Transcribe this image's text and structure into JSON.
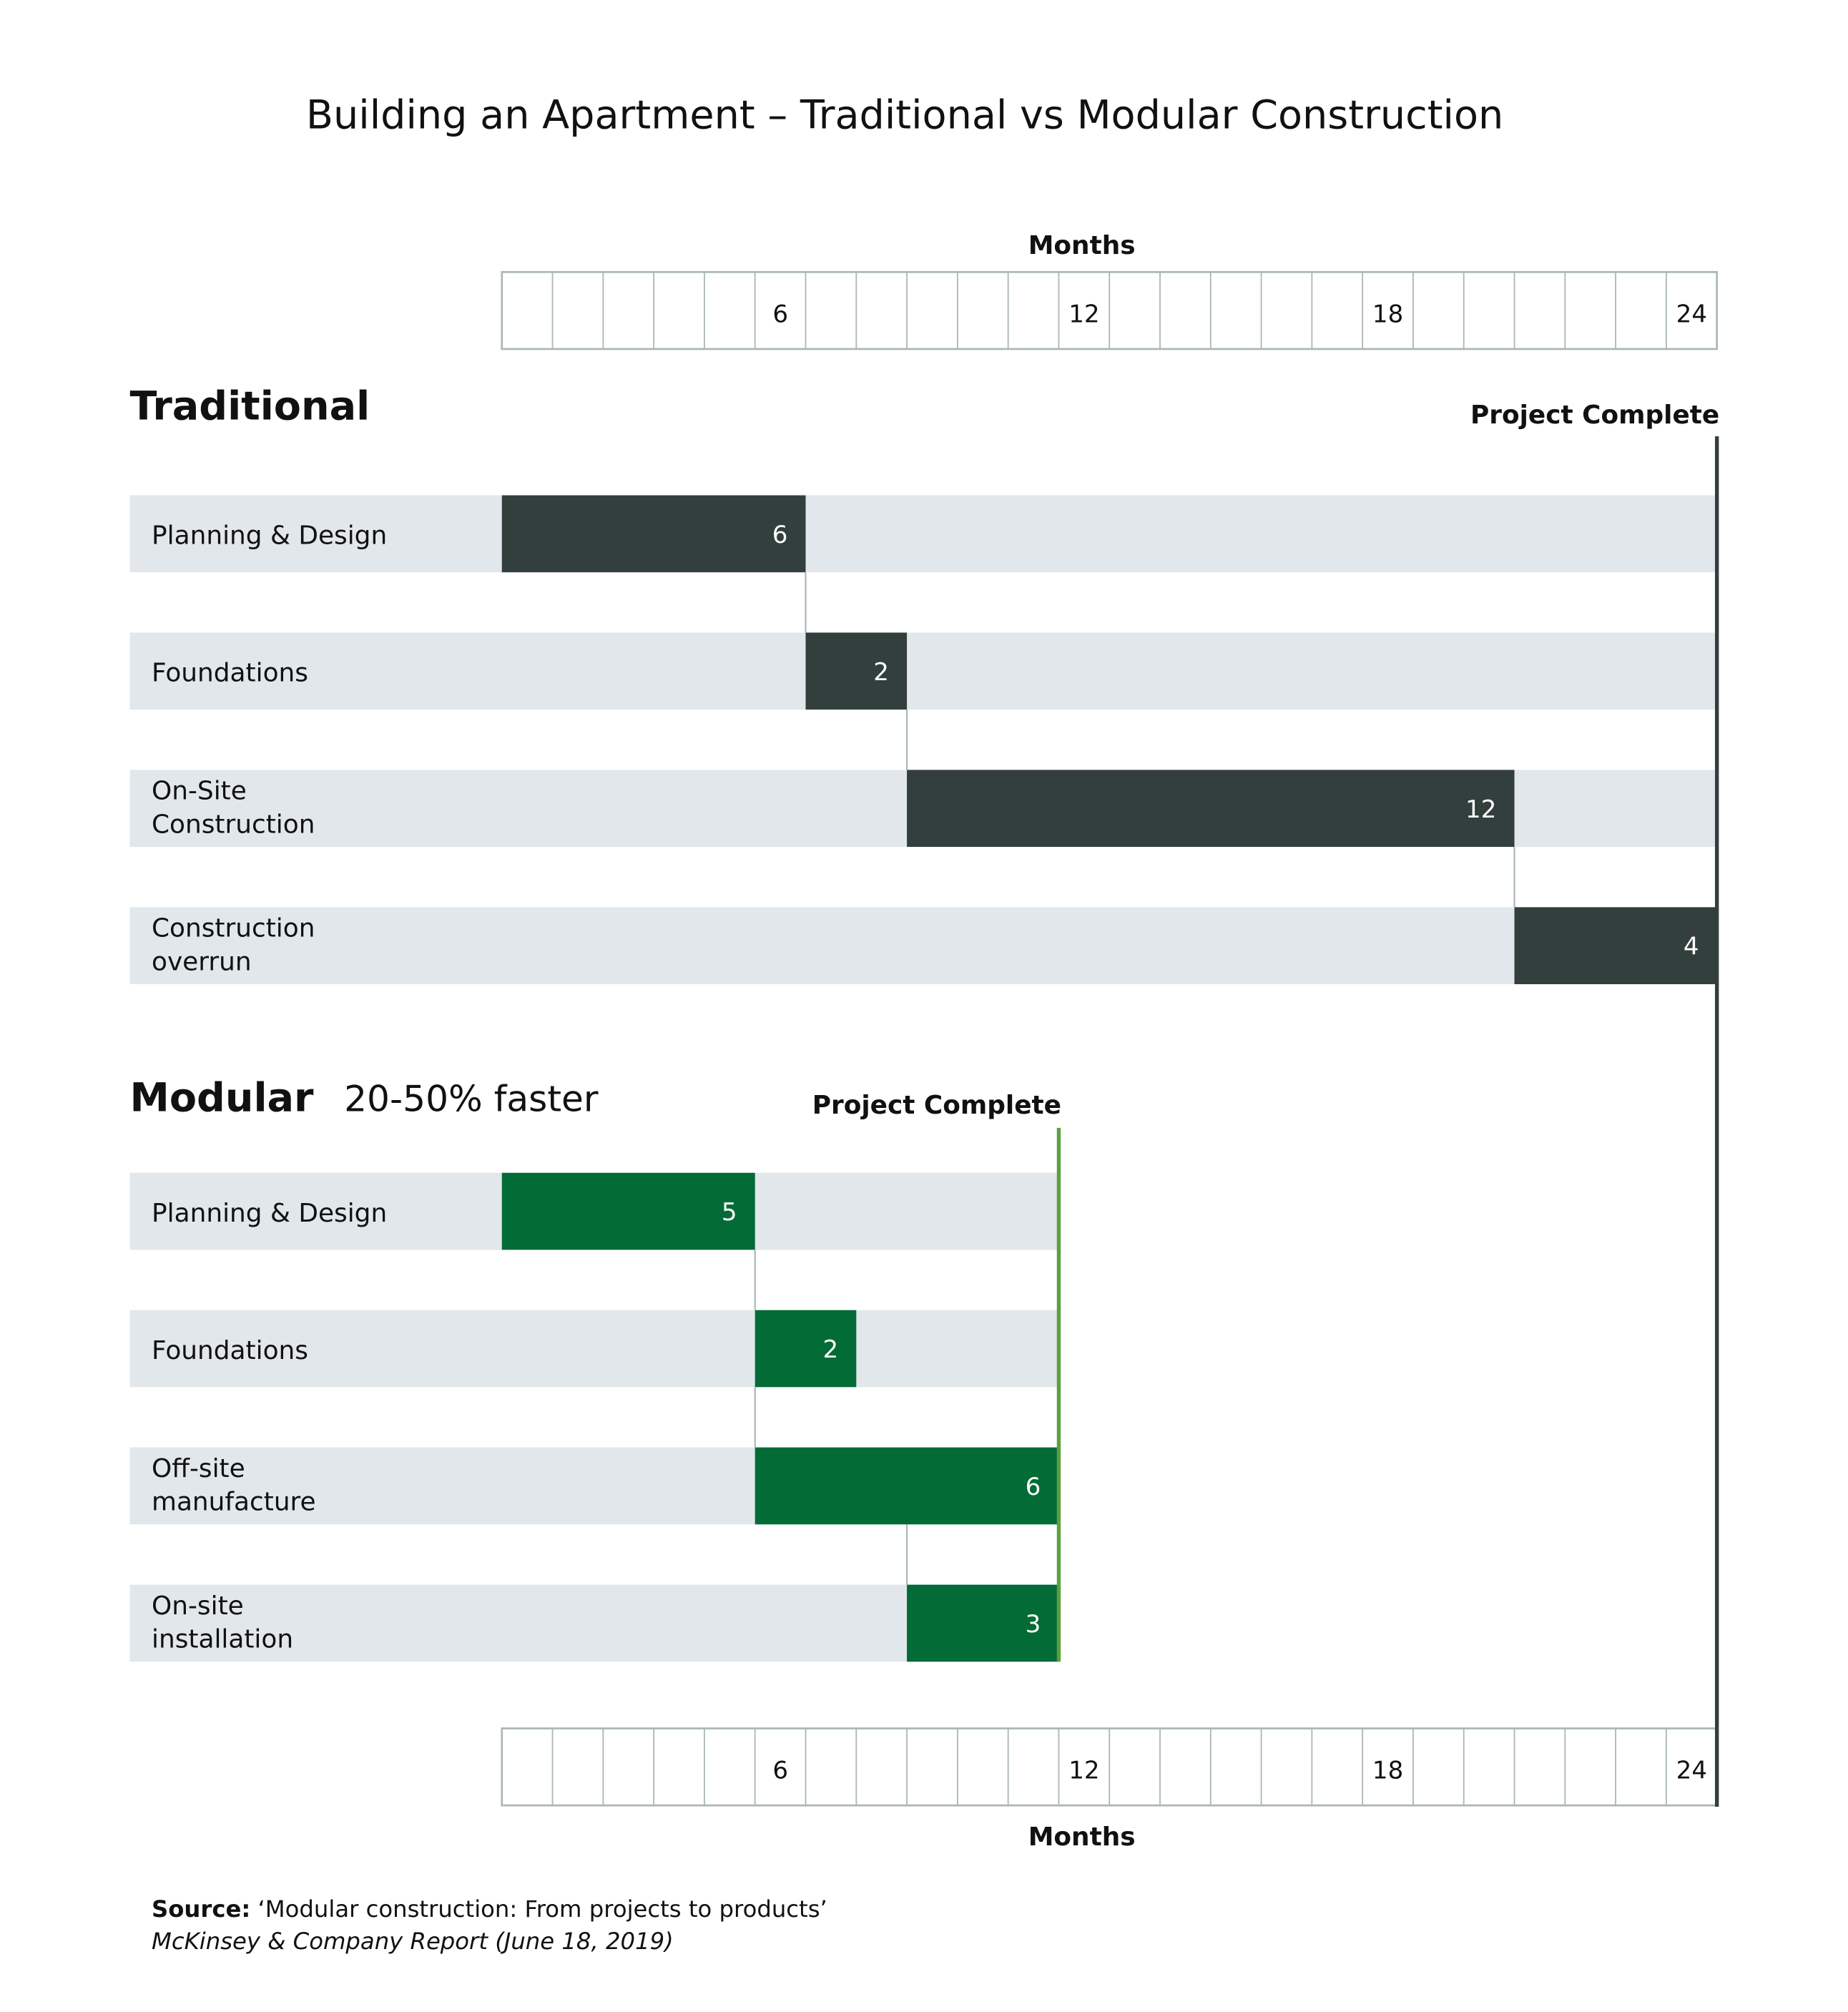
{
  "chart_data": {
    "type": "gantt",
    "title": "Building an Apartment – Traditional vs Modular Construction",
    "axis_label": "Months",
    "xlim": [
      0,
      24
    ],
    "tick_labels": [
      "6",
      "12",
      "18",
      "24"
    ],
    "ticks": [
      6,
      12,
      18,
      24
    ],
    "grid_step": 1,
    "panels": [
      {
        "name": "Traditional",
        "subtitle": "",
        "complete_label": "Project Complete",
        "complete_at": 24,
        "bar_color": "#333f3c",
        "line_color": "#333f3c",
        "tasks": [
          {
            "label": [
              "Planning & Design"
            ],
            "start": 0,
            "duration": 6,
            "value_label": "6"
          },
          {
            "label": [
              "Foundations"
            ],
            "start": 6,
            "duration": 2,
            "value_label": "2"
          },
          {
            "label": [
              "On-Site",
              "Construction"
            ],
            "start": 8,
            "duration": 12,
            "value_label": "12"
          },
          {
            "label": [
              "Construction",
              "overrun"
            ],
            "start": 20,
            "duration": 4,
            "value_label": "4"
          }
        ]
      },
      {
        "name": "Modular",
        "subtitle": "20-50% faster",
        "complete_label": "Project Complete",
        "complete_at": 11,
        "bar_color": "#036b35",
        "line_color": "#5ba040",
        "tasks": [
          {
            "label": [
              "Planning & Design"
            ],
            "start": 0,
            "duration": 5,
            "value_label": "5"
          },
          {
            "label": [
              "Foundations"
            ],
            "start": 5,
            "duration": 2,
            "value_label": "2"
          },
          {
            "label": [
              "Off-site",
              "manufacture"
            ],
            "start": 5,
            "duration": 6,
            "value_label": "6"
          },
          {
            "label": [
              "On-site",
              "installation"
            ],
            "start": 8,
            "duration": 3,
            "value_label": "3"
          }
        ]
      }
    ],
    "row_bg_color": "#e1e7ea",
    "grid_color": "#aab6b6"
  },
  "source": {
    "label": "Source:",
    "text": " ‘Modular construction: From projects to products’",
    "citation": "McKinsey & Company Report (June 18, 2019)"
  }
}
